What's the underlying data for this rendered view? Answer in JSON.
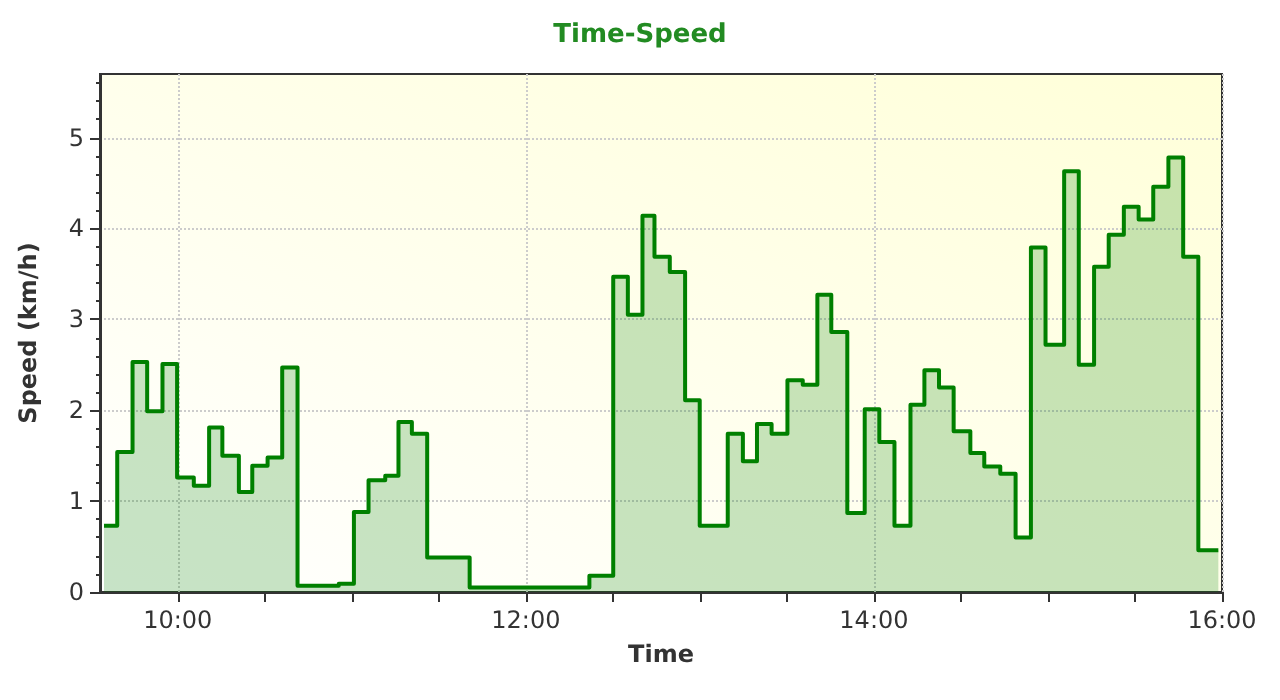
{
  "chart_data": {
    "type": "area",
    "title": "Time-Speed",
    "xlabel": "Time",
    "ylabel": "Speed (km/h)",
    "x": [
      9.576,
      9.652,
      9.652,
      9.74,
      9.74,
      9.824,
      9.824,
      9.912,
      9.912,
      9.996,
      9.996,
      10.092,
      10.092,
      10.18,
      10.18,
      10.256,
      10.256,
      10.351,
      10.351,
      10.428,
      10.428,
      10.516,
      10.516,
      10.6,
      10.6,
      10.688,
      10.688,
      10.925,
      10.925,
      11.012,
      11.012,
      11.096,
      11.096,
      11.192,
      11.192,
      11.268,
      11.268,
      11.345,
      11.345,
      11.433,
      11.433,
      11.677,
      11.677,
      12.365,
      12.365,
      12.502,
      12.502,
      12.586,
      12.586,
      12.67,
      12.67,
      12.739,
      12.739,
      12.827,
      12.827,
      12.915,
      12.915,
      12.999,
      12.999,
      13.16,
      13.16,
      13.247,
      13.247,
      13.328,
      13.328,
      13.412,
      13.412,
      13.503,
      13.503,
      13.591,
      13.591,
      13.675,
      13.675,
      13.755,
      13.755,
      13.847,
      13.847,
      13.947,
      13.947,
      14.031,
      14.031,
      14.118,
      14.118,
      14.21,
      14.21,
      14.29,
      14.29,
      14.374,
      14.374,
      14.458,
      14.458,
      14.554,
      14.554,
      14.634,
      14.634,
      14.726,
      14.726,
      14.814,
      14.814,
      14.902,
      14.902,
      14.986,
      14.986,
      15.093,
      15.093,
      15.177,
      15.177,
      15.265,
      15.265,
      15.349,
      15.349,
      15.436,
      15.436,
      15.521,
      15.521,
      15.605,
      15.605,
      15.692,
      15.692,
      15.777,
      15.777,
      15.864,
      15.864,
      15.979
    ],
    "series": [
      {
        "color": "#008000",
        "values": [
          0.73,
          0.73,
          1.54,
          1.54,
          2.53,
          2.53,
          1.99,
          1.99,
          2.51,
          2.51,
          1.26,
          1.26,
          1.17,
          1.17,
          1.81,
          1.81,
          1.5,
          1.5,
          1.1,
          1.1,
          1.39,
          1.39,
          1.48,
          1.48,
          2.47,
          2.47,
          0.07,
          0.07,
          0.09,
          0.09,
          0.88,
          0.88,
          1.23,
          1.23,
          1.28,
          1.28,
          1.87,
          1.87,
          1.74,
          1.74,
          0.38,
          0.38,
          0.05,
          0.05,
          0.18,
          0.18,
          3.47,
          3.47,
          3.05,
          3.05,
          4.14,
          4.14,
          3.69,
          3.69,
          3.52,
          3.52,
          2.11,
          2.11,
          0.73,
          0.73,
          1.74,
          1.74,
          1.44,
          1.44,
          1.85,
          1.85,
          1.74,
          1.74,
          2.33,
          2.33,
          2.28,
          2.28,
          3.27,
          3.27,
          2.86,
          2.86,
          0.87,
          0.87,
          2.01,
          2.01,
          1.65,
          1.65,
          0.73,
          0.73,
          2.06,
          2.06,
          2.44,
          2.44,
          2.25,
          2.25,
          1.77,
          1.77,
          1.53,
          1.53,
          1.38,
          1.38,
          1.3,
          1.3,
          0.6,
          0.6,
          3.79,
          3.79,
          2.72,
          2.72,
          4.63,
          4.63,
          2.5,
          2.5,
          3.58,
          3.58,
          3.93,
          3.93,
          4.24,
          4.24,
          4.1,
          4.1,
          4.46,
          4.46,
          4.78,
          4.78,
          3.69,
          3.69,
          0.46,
          0.46
        ]
      }
    ],
    "xlim": [
      9.553,
      16
    ],
    "xticks": [
      {
        "value": 10,
        "label": "10:00"
      },
      {
        "value": 10.5,
        "label": null
      },
      {
        "value": 11,
        "label": null
      },
      {
        "value": 11.5,
        "label": null
      },
      {
        "value": 12,
        "label": "12:00"
      },
      {
        "value": 12.5,
        "label": null
      },
      {
        "value": 13,
        "label": null
      },
      {
        "value": 13.5,
        "label": null
      },
      {
        "value": 14,
        "label": "14:00"
      },
      {
        "value": 14.5,
        "label": null
      },
      {
        "value": 15,
        "label": null
      },
      {
        "value": 15.5,
        "label": null
      },
      {
        "value": 16,
        "label": "16:00"
      }
    ],
    "ylim": [
      0,
      5.7
    ],
    "yticks": [
      0,
      1,
      2,
      3,
      4,
      5
    ],
    "grid": true,
    "marker": "none",
    "line_style": "solid"
  }
}
